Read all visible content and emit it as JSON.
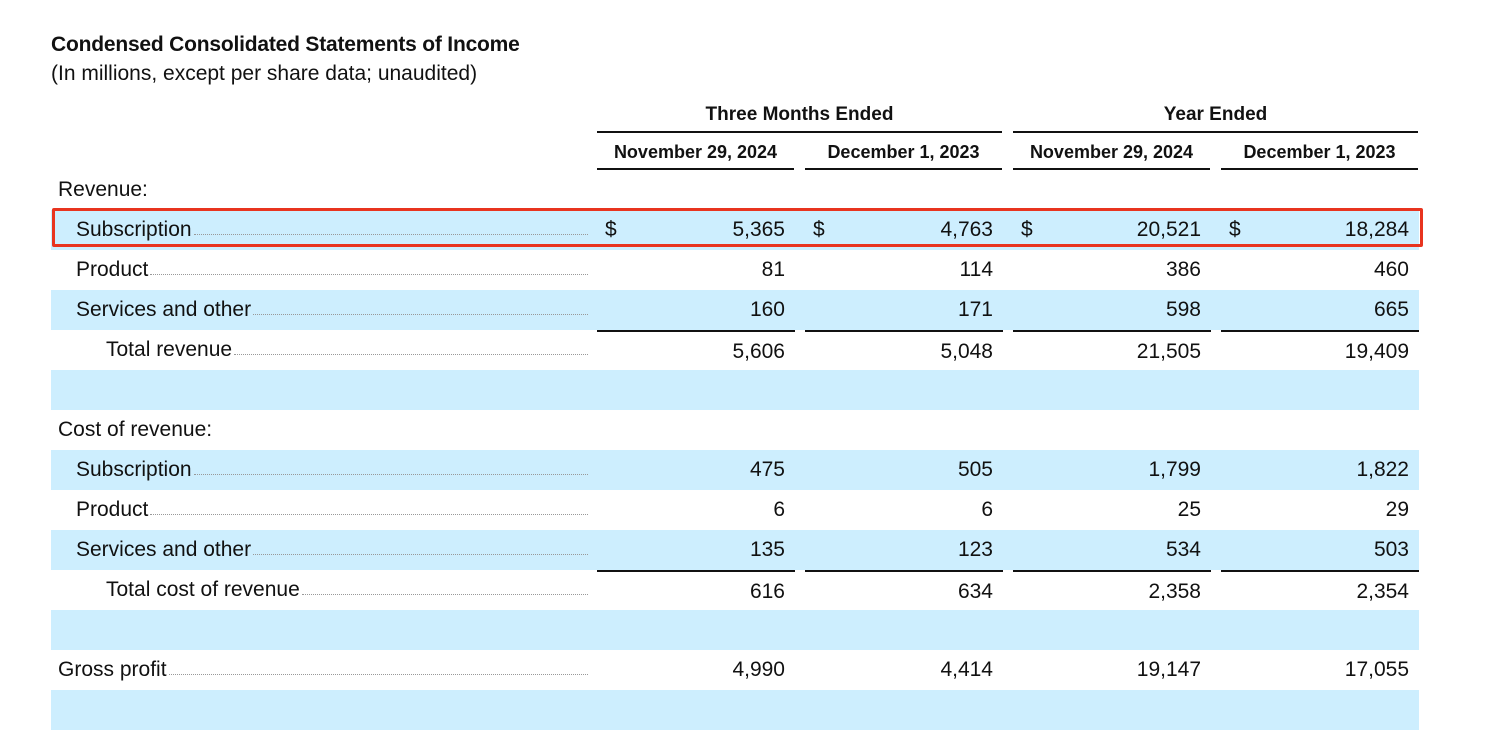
{
  "document": {
    "title": "Condensed Consolidated Statements of Income",
    "subtitle": "(In millions, except per share data; unaudited)"
  },
  "column_groups": [
    {
      "label": "Three Months Ended"
    },
    {
      "label": "Year Ended"
    }
  ],
  "columns": [
    {
      "label": "November 29, 2024"
    },
    {
      "label": "December 1, 2023"
    },
    {
      "label": "November 29, 2024"
    },
    {
      "label": "December 1, 2023"
    }
  ],
  "rows": [
    {
      "label": "Revenue:",
      "indent": 0,
      "type": "section",
      "values": [
        "",
        "",
        "",
        ""
      ]
    },
    {
      "label": "Subscription",
      "indent": 1,
      "type": "line",
      "dollar": "$",
      "values": [
        "5,365",
        "4,763",
        "20,521",
        "18,284"
      ],
      "highlighted": true
    },
    {
      "label": "Product",
      "indent": 1,
      "type": "line",
      "values": [
        "81",
        "114",
        "386",
        "460"
      ]
    },
    {
      "label": "Services and other",
      "indent": 1,
      "type": "line",
      "values": [
        "160",
        "171",
        "598",
        "665"
      ]
    },
    {
      "label": "Total revenue",
      "indent": 2,
      "type": "total",
      "values": [
        "5,606",
        "5,048",
        "21,505",
        "19,409"
      ]
    },
    {
      "label": "",
      "type": "spacer",
      "values": [
        "",
        "",
        "",
        ""
      ]
    },
    {
      "label": "Cost of revenue:",
      "indent": 0,
      "type": "section",
      "values": [
        "",
        "",
        "",
        ""
      ]
    },
    {
      "label": "Subscription",
      "indent": 1,
      "type": "line",
      "values": [
        "475",
        "505",
        "1,799",
        "1,822"
      ]
    },
    {
      "label": "Product",
      "indent": 1,
      "type": "line",
      "values": [
        "6",
        "6",
        "25",
        "29"
      ]
    },
    {
      "label": "Services and other",
      "indent": 1,
      "type": "line",
      "values": [
        "135",
        "123",
        "534",
        "503"
      ]
    },
    {
      "label": "Total cost of revenue",
      "indent": 2,
      "type": "total",
      "values": [
        "616",
        "634",
        "2,358",
        "2,354"
      ]
    },
    {
      "label": "",
      "type": "spacer",
      "values": [
        "",
        "",
        "",
        ""
      ]
    },
    {
      "label": "Gross profit",
      "indent": 0,
      "type": "line",
      "values": [
        "4,990",
        "4,414",
        "19,147",
        "17,055"
      ]
    },
    {
      "label": "",
      "type": "spacer",
      "values": [
        "",
        "",
        "",
        ""
      ]
    }
  ],
  "colors": {
    "row_shade": "#cdeefe",
    "highlight_border": "#e8341f"
  }
}
